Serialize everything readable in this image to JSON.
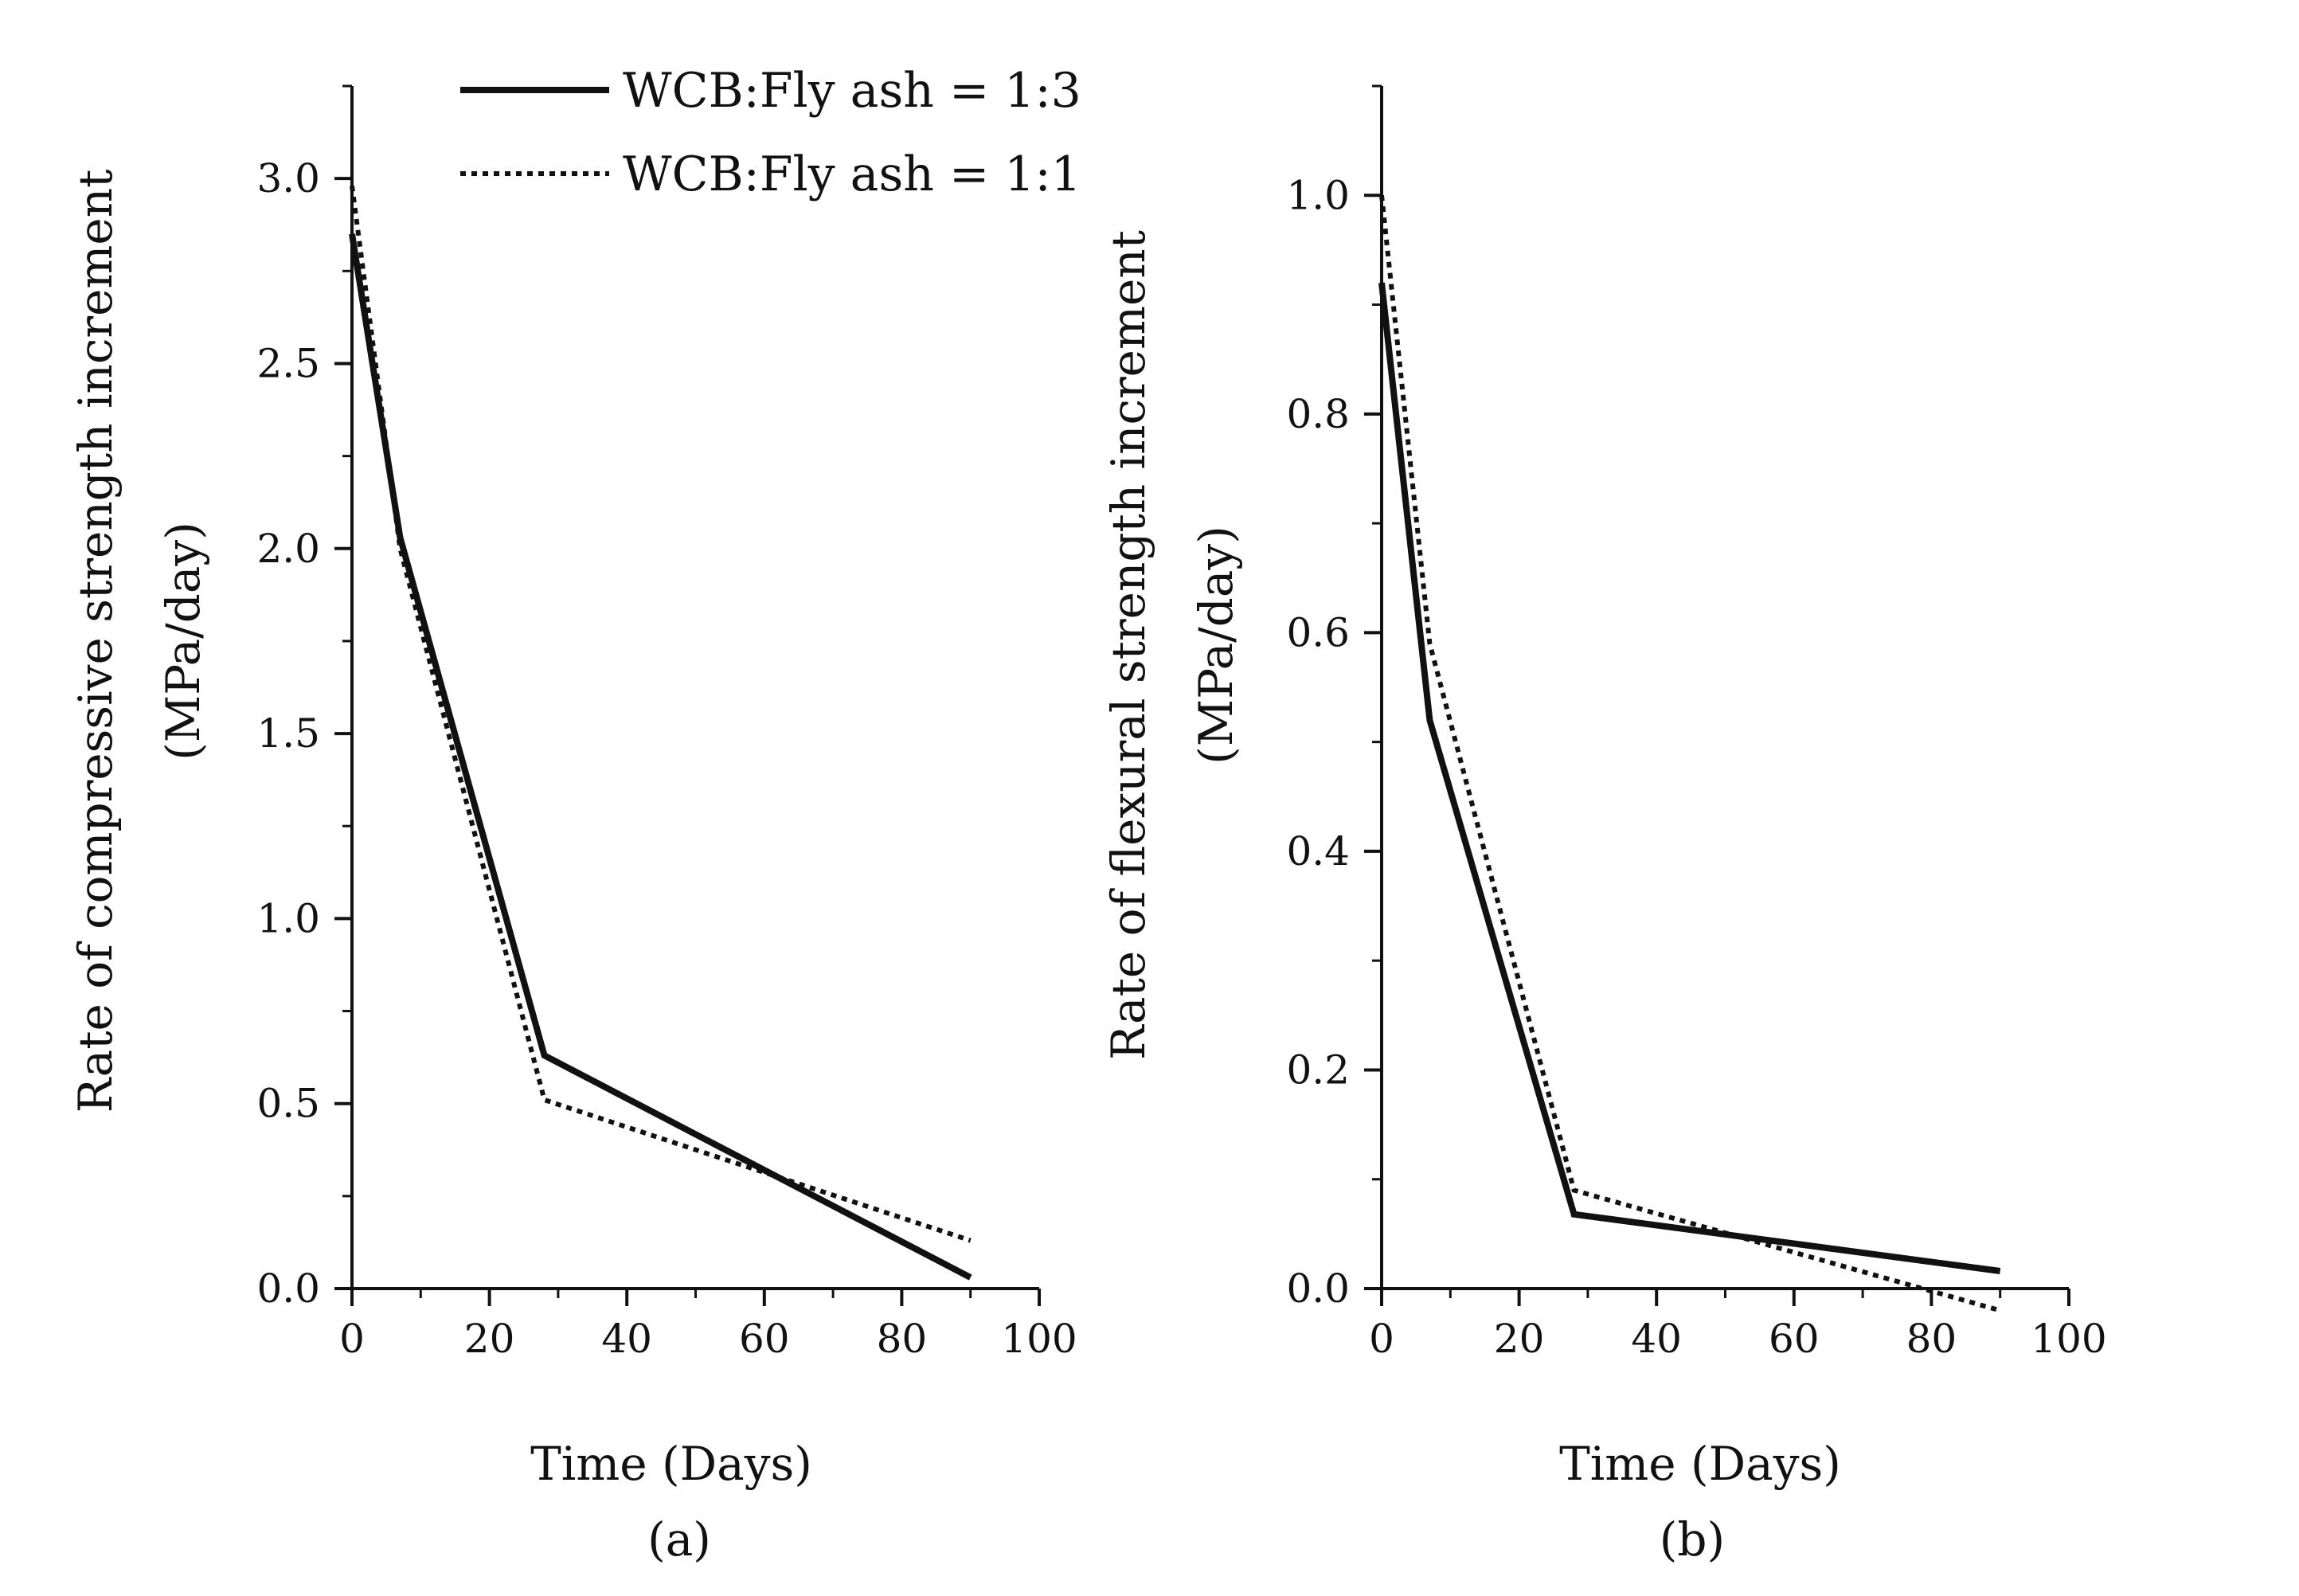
{
  "colors": {
    "line": "#111111",
    "background": "#ffffff"
  },
  "legend": {
    "placement": "top-right of panel (a)",
    "entries": [
      {
        "label": "WCB:Fly ash = 1:3",
        "style": "solid"
      },
      {
        "label": "WCB:Fly ash = 1:1",
        "style": "dotted"
      }
    ]
  },
  "chart_data": [
    {
      "type": "line",
      "panel_label": "(a)",
      "title": "",
      "xlabel": "Time (Days)",
      "ylabel_line1": "Rate of compressive strength increment",
      "ylabel_line2": "(MPa/day)",
      "xlim": [
        0,
        100
      ],
      "ylim": [
        0,
        3.25
      ],
      "xticks": [
        0,
        20,
        40,
        60,
        80,
        100
      ],
      "xtick_labels": [
        "0",
        "20",
        "40",
        "60",
        "80",
        "100"
      ],
      "yticks": [
        0,
        0.5,
        1.0,
        1.5,
        2.0,
        2.5,
        3.0
      ],
      "ytick_labels": [
        "0.0",
        "0.5",
        "1.0",
        "1.5",
        "2.0",
        "2.5",
        "3.0"
      ],
      "grid": false,
      "series": [
        {
          "name": "WCB:Fly ash = 1:3",
          "style": "solid",
          "x": [
            0,
            7,
            28,
            90
          ],
          "y": [
            2.85,
            2.03,
            0.63,
            0.03
          ]
        },
        {
          "name": "WCB:Fly ash = 1:1",
          "style": "dotted",
          "x": [
            0,
            7,
            28,
            90
          ],
          "y": [
            2.98,
            2.0,
            0.51,
            0.13
          ]
        }
      ]
    },
    {
      "type": "line",
      "panel_label": "(b)",
      "title": "",
      "xlabel": "Time (Days)",
      "ylabel_line1": "Rate of flexural strength increment",
      "ylabel_line2": "(MPa/day)",
      "xlim": [
        0,
        100
      ],
      "ylim": [
        0,
        1.1
      ],
      "xticks": [
        0,
        20,
        40,
        60,
        80,
        100
      ],
      "xtick_labels": [
        "0",
        "20",
        "40",
        "60",
        "80",
        "100"
      ],
      "yticks": [
        0,
        0.2,
        0.4,
        0.6,
        0.8,
        1.0
      ],
      "ytick_labels": [
        "0.0",
        "0.2",
        "0.4",
        "0.6",
        "0.8",
        "1.0"
      ],
      "grid": false,
      "series": [
        {
          "name": "WCB:Fly ash = 1:3",
          "style": "solid",
          "x": [
            0,
            7,
            28,
            90
          ],
          "y": [
            0.92,
            0.52,
            0.068,
            0.016
          ]
        },
        {
          "name": "WCB:Fly ash = 1:1",
          "style": "dotted",
          "x": [
            0,
            7,
            28,
            90
          ],
          "y": [
            1.0,
            0.59,
            0.09,
            -0.02
          ]
        }
      ]
    }
  ]
}
